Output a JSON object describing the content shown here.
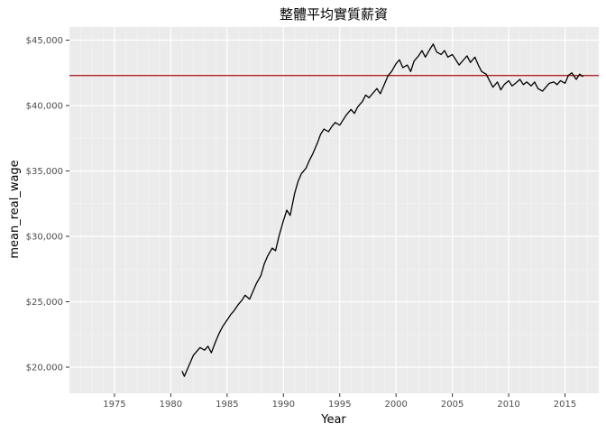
{
  "chart_data": {
    "type": "line",
    "title": "整體平均實質薪資",
    "xlabel": "Year",
    "ylabel": "mean_real_wage",
    "xlim": [
      1971,
      2018
    ],
    "ylim": [
      18000,
      46000
    ],
    "grid": true,
    "x_ticks": [
      1975,
      1980,
      1985,
      1990,
      1995,
      2000,
      2005,
      2010,
      2015
    ],
    "x_tick_labels": [
      "1975",
      "1980",
      "1985",
      "1990",
      "1995",
      "2000",
      "2005",
      "2010",
      "2015"
    ],
    "y_ticks": [
      20000,
      25000,
      30000,
      35000,
      40000,
      45000
    ],
    "y_tick_labels": [
      "$20,000",
      "$25,000",
      "$30,000",
      "$35,000",
      "$40,000",
      "$45,000"
    ],
    "hline": {
      "value": 42300,
      "color": "#b22222"
    },
    "series": [
      {
        "color": "#000000",
        "points": [
          [
            1981.0,
            19700
          ],
          [
            1981.2,
            19300
          ],
          [
            1981.5,
            19900
          ],
          [
            1981.8,
            20500
          ],
          [
            1982.0,
            20900
          ],
          [
            1982.3,
            21200
          ],
          [
            1982.6,
            21500
          ],
          [
            1983.0,
            21300
          ],
          [
            1983.3,
            21600
          ],
          [
            1983.6,
            21100
          ],
          [
            1984.0,
            22000
          ],
          [
            1984.3,
            22600
          ],
          [
            1984.6,
            23100
          ],
          [
            1985.0,
            23600
          ],
          [
            1985.3,
            24000
          ],
          [
            1985.6,
            24300
          ],
          [
            1986.0,
            24800
          ],
          [
            1986.3,
            25100
          ],
          [
            1986.6,
            25500
          ],
          [
            1987.0,
            25200
          ],
          [
            1987.3,
            25800
          ],
          [
            1987.6,
            26400
          ],
          [
            1988.0,
            27000
          ],
          [
            1988.3,
            27900
          ],
          [
            1988.6,
            28500
          ],
          [
            1989.0,
            29100
          ],
          [
            1989.3,
            28900
          ],
          [
            1989.6,
            30000
          ],
          [
            1990.0,
            31200
          ],
          [
            1990.3,
            32000
          ],
          [
            1990.6,
            31600
          ],
          [
            1991.0,
            33300
          ],
          [
            1991.3,
            34200
          ],
          [
            1991.6,
            34800
          ],
          [
            1992.0,
            35200
          ],
          [
            1992.3,
            35800
          ],
          [
            1992.6,
            36300
          ],
          [
            1993.0,
            37100
          ],
          [
            1993.3,
            37800
          ],
          [
            1993.6,
            38200
          ],
          [
            1994.0,
            38000
          ],
          [
            1994.3,
            38400
          ],
          [
            1994.6,
            38700
          ],
          [
            1995.0,
            38500
          ],
          [
            1995.3,
            38900
          ],
          [
            1995.6,
            39300
          ],
          [
            1996.0,
            39700
          ],
          [
            1996.3,
            39400
          ],
          [
            1996.6,
            39900
          ],
          [
            1997.0,
            40300
          ],
          [
            1997.3,
            40800
          ],
          [
            1997.6,
            40600
          ],
          [
            1998.0,
            41000
          ],
          [
            1998.3,
            41300
          ],
          [
            1998.6,
            40900
          ],
          [
            1999.0,
            41700
          ],
          [
            1999.3,
            42300
          ],
          [
            1999.6,
            42600
          ],
          [
            2000.0,
            43200
          ],
          [
            2000.3,
            43500
          ],
          [
            2000.6,
            42900
          ],
          [
            2001.0,
            43100
          ],
          [
            2001.3,
            42600
          ],
          [
            2001.6,
            43400
          ],
          [
            2002.0,
            43800
          ],
          [
            2002.3,
            44200
          ],
          [
            2002.6,
            43700
          ],
          [
            2003.0,
            44300
          ],
          [
            2003.3,
            44700
          ],
          [
            2003.6,
            44100
          ],
          [
            2004.0,
            43900
          ],
          [
            2004.3,
            44200
          ],
          [
            2004.6,
            43700
          ],
          [
            2005.0,
            43900
          ],
          [
            2005.3,
            43500
          ],
          [
            2005.6,
            43100
          ],
          [
            2006.0,
            43500
          ],
          [
            2006.3,
            43800
          ],
          [
            2006.6,
            43300
          ],
          [
            2007.0,
            43700
          ],
          [
            2007.3,
            43100
          ],
          [
            2007.6,
            42600
          ],
          [
            2008.0,
            42400
          ],
          [
            2008.3,
            41900
          ],
          [
            2008.6,
            41400
          ],
          [
            2009.0,
            41800
          ],
          [
            2009.3,
            41200
          ],
          [
            2009.6,
            41600
          ],
          [
            2010.0,
            41900
          ],
          [
            2010.3,
            41500
          ],
          [
            2010.6,
            41700
          ],
          [
            2011.0,
            42000
          ],
          [
            2011.3,
            41600
          ],
          [
            2011.6,
            41800
          ],
          [
            2012.0,
            41500
          ],
          [
            2012.3,
            41800
          ],
          [
            2012.6,
            41300
          ],
          [
            2013.0,
            41100
          ],
          [
            2013.3,
            41400
          ],
          [
            2013.6,
            41700
          ],
          [
            2014.0,
            41800
          ],
          [
            2014.3,
            41600
          ],
          [
            2014.6,
            41900
          ],
          [
            2015.0,
            41700
          ],
          [
            2015.3,
            42300
          ],
          [
            2015.6,
            42500
          ],
          [
            2016.0,
            42000
          ],
          [
            2016.3,
            42400
          ],
          [
            2016.6,
            42200
          ]
        ]
      }
    ]
  }
}
